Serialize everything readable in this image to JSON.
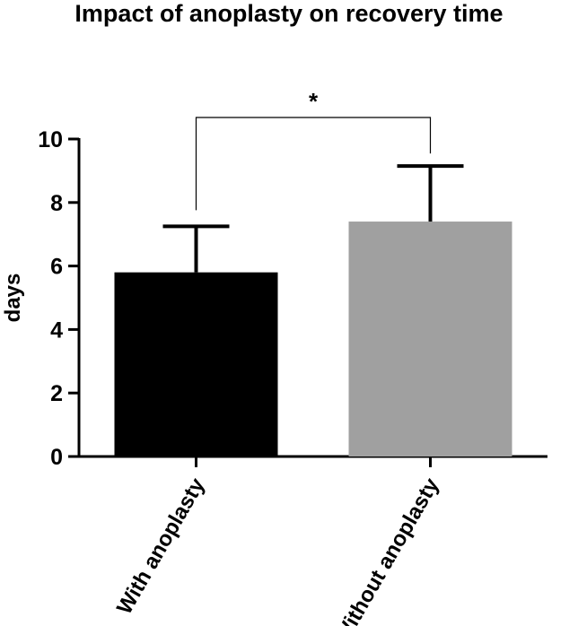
{
  "chart_data": {
    "type": "bar",
    "title": "Impact of anoplasty on recovery time",
    "xlabel": "",
    "ylabel": "days",
    "ylim": [
      0,
      10
    ],
    "yticks": [
      0,
      2,
      4,
      6,
      8,
      10
    ],
    "categories": [
      "With anoplasty",
      "Without anoplasty"
    ],
    "values": [
      5.8,
      7.4
    ],
    "error_upper": [
      1.45,
      1.75
    ],
    "colors": [
      "#000000",
      "#a0a0a0"
    ],
    "significance": {
      "between": [
        0,
        1
      ],
      "label": "*"
    }
  }
}
